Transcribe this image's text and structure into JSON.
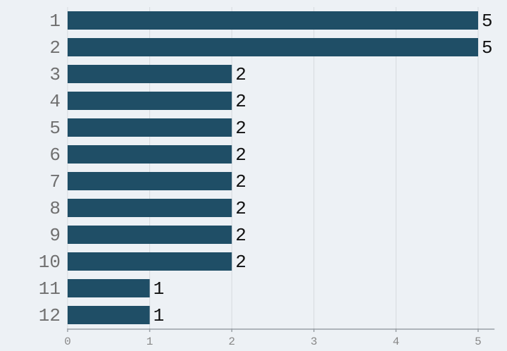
{
  "chart_data": {
    "type": "bar",
    "orientation": "horizontal",
    "categories": [
      "1",
      "2",
      "3",
      "4",
      "5",
      "6",
      "7",
      "8",
      "9",
      "10",
      "11",
      "12"
    ],
    "values": [
      5,
      5,
      2,
      2,
      2,
      2,
      2,
      2,
      2,
      2,
      1,
      1
    ],
    "color": "#1f4e66",
    "xlim": [
      0,
      5.2
    ],
    "xticks": [
      0,
      1,
      2,
      3,
      4,
      5
    ],
    "grid": true
  }
}
